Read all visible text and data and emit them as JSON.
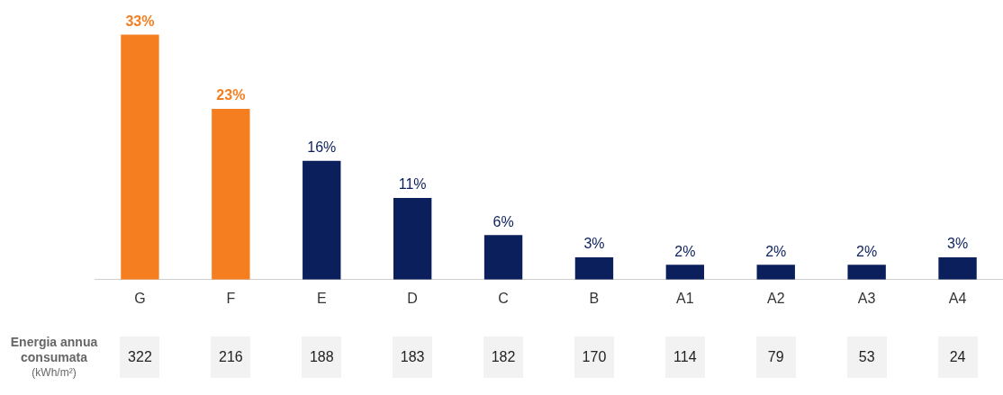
{
  "chart_data": {
    "type": "bar",
    "categories": [
      "G",
      "F",
      "E",
      "D",
      "C",
      "B",
      "A1",
      "A2",
      "A3",
      "A4"
    ],
    "values": [
      33,
      23,
      16,
      11,
      6,
      3,
      2,
      2,
      2,
      3
    ],
    "colors": [
      "#f47e20",
      "#f47e20",
      "#0b1f5c",
      "#0b1f5c",
      "#0b1f5c",
      "#0b1f5c",
      "#0b1f5c",
      "#0b1f5c",
      "#0b1f5c",
      "#0b1f5c"
    ],
    "value_labels": [
      "33%",
      "23%",
      "16%",
      "11%",
      "6%",
      "3%",
      "2%",
      "2%",
      "2%",
      "3%"
    ],
    "annotations": [
      "Energia annua consumata (kWh/m²)",
      "322",
      "216",
      "188",
      "183",
      "182",
      "170",
      "114",
      "79",
      "53",
      "24"
    ],
    "grid": false,
    "legend": false
  }
}
